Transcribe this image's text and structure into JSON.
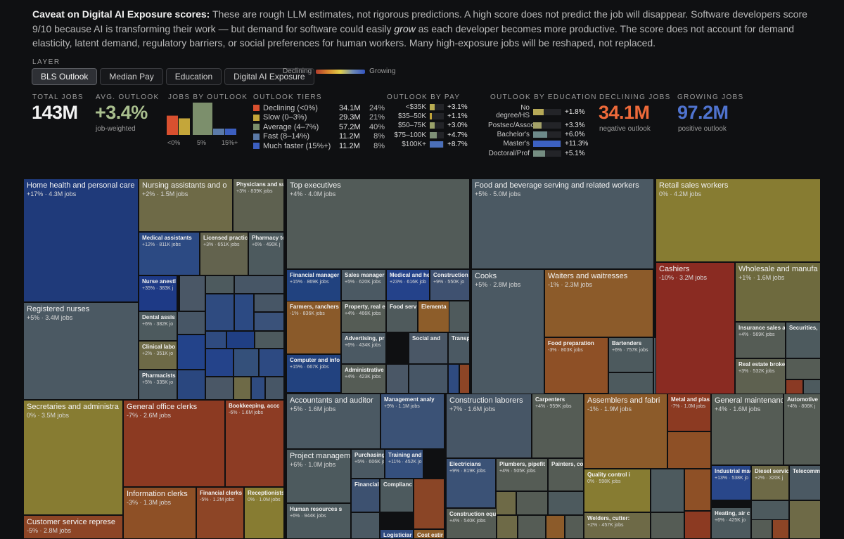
{
  "caveat": {
    "title": "Caveat on Digital AI Exposure scores:",
    "text_a": " These are rough LLM estimates, not rigorous predictions. A high score does not predict the job will disappear. Software developers score 9/10 because AI is transforming their work — but demand for software could easily ",
    "emphasis": "grow",
    "text_b": " as each developer becomes more productive. The score does not account for demand elasticity, latent demand, regulatory barriers, or social preferences for human workers. Many high-exposure jobs will be reshaped, not replaced."
  },
  "layer": {
    "label": "LAYER",
    "tabs": [
      "BLS Outlook",
      "Median Pay",
      "Education",
      "Digital AI Exposure"
    ],
    "legend_low": "Declining",
    "legend_high": "Growing"
  },
  "stats": {
    "total_jobs": {
      "title": "TOTAL JOBS",
      "value": "143M"
    },
    "avg_outlook": {
      "title": "AVG. OUTLOOK",
      "value": "+3.4%",
      "sub": "job-weighted"
    },
    "jobs_by_outlook": {
      "title": "JOBS BY OUTLOOK",
      "ticks": [
        "<0%",
        "5%",
        "15%+"
      ],
      "values": [
        34.1,
        29.3,
        57.2,
        11.2,
        11.2
      ]
    },
    "outlook_tiers": {
      "title": "OUTLOOK TIERS",
      "rows": [
        {
          "label": "Declining (<0%)",
          "value": "34.1M",
          "pct": "24%",
          "color": "#d9502f"
        },
        {
          "label": "Slow (0–3%)",
          "value": "29.3M",
          "pct": "21%",
          "color": "#c4a63a"
        },
        {
          "label": "Average (4–7%)",
          "value": "57.2M",
          "pct": "40%",
          "color": "#7c8f6c"
        },
        {
          "label": "Fast (8–14%)",
          "value": "11.2M",
          "pct": "8%",
          "color": "#5b7aa8"
        },
        {
          "label": "Much faster (15%+)",
          "value": "11.2M",
          "pct": "8%",
          "color": "#3c5fc0"
        }
      ]
    },
    "outlook_by_pay": {
      "title": "OUTLOOK BY PAY",
      "rows": [
        {
          "label": "<$35K",
          "value": "+3.1%",
          "fill": 0.36,
          "color": "#b8ac52"
        },
        {
          "label": "$35–50K",
          "value": "+1.1%",
          "fill": 0.15,
          "color": "#c2a53a"
        },
        {
          "label": "$50–75K",
          "value": "+3.0%",
          "fill": 0.35,
          "color": "#9aa26a"
        },
        {
          "label": "$75–100K",
          "value": "+4.7%",
          "fill": 0.5,
          "color": "#7f9077"
        },
        {
          "label": "$100K+",
          "value": "+8.7%",
          "fill": 0.93,
          "color": "#4b6fb8"
        }
      ]
    },
    "outlook_by_education": {
      "title": "OUTLOOK BY EDUCATION",
      "rows": [
        {
          "label": "No degree/HS",
          "value": "+1.8%",
          "fill": 0.37,
          "color": "#b6a957"
        },
        {
          "label": "Postsec/Assoc",
          "value": "+3.3%",
          "fill": 0.3,
          "color": "#a3a168"
        },
        {
          "label": "Bachelor's",
          "value": "+6.0%",
          "fill": 0.5,
          "color": "#6d8a8a"
        },
        {
          "label": "Master's",
          "value": "+11.3%",
          "fill": 0.97,
          "color": "#3c61c2"
        },
        {
          "label": "Doctoral/Prof",
          "value": "+5.1%",
          "fill": 0.42,
          "color": "#758d82"
        }
      ]
    },
    "declining_jobs": {
      "title": "DECLINING JOBS",
      "value": "34.1M",
      "sub": "negative outlook"
    },
    "growing_jobs": {
      "title": "GROWING JOBS",
      "value": "97.2M",
      "sub": "positive outlook"
    }
  },
  "treemap": {
    "cells": [
      {
        "name": "Home health and personal care",
        "meta": "+17% · 4.3M jobs",
        "color": "#1f3a7a"
      },
      {
        "name": "Registered nurses",
        "meta": "+5% · 3.4M jobs",
        "color": "#4b5963"
      },
      {
        "name": "Nursing assistants and o",
        "meta": "+2% · 1.5M jobs",
        "color": "#6e6a47"
      },
      {
        "name": "Physicians and su",
        "meta": "+3% · 839K jobs",
        "color": "#5e6150"
      },
      {
        "name": "Medical assistants",
        "meta": "+12% · 811K jobs",
        "color": "#2c4a83"
      },
      {
        "name": "Licensed practic",
        "meta": "+3% · 651K jobs",
        "color": "#63634e"
      },
      {
        "name": "Pharmacy te",
        "meta": "+6% · 490K j",
        "color": "#4d5a5e"
      },
      {
        "name": "Nurse anestl",
        "meta": "+35% · 383K j",
        "color": "#1e3a86"
      },
      {
        "name": "Dental assis",
        "meta": "+6% · 382K jo",
        "color": "#4d5a5e"
      },
      {
        "name": "Clinical labo",
        "meta": "+2% · 351K jo",
        "color": "#6e6a47"
      },
      {
        "name": "Pharmacists",
        "meta": "+5% · 335K jo",
        "color": "#4b5963"
      },
      {
        "name": "Top executives",
        "meta": "+4% · 4.0M jobs",
        "color": "#525b58"
      },
      {
        "name": "Financial manager",
        "meta": "+15% · 869K jobs",
        "color": "#21427f"
      },
      {
        "name": "Sales manager",
        "meta": "+5% · 620K jobs",
        "color": "#4b5963"
      },
      {
        "name": "Medical and he",
        "meta": "+23% · 616K job",
        "color": "#24428a"
      },
      {
        "name": "Construction",
        "meta": "+9% · 550K jo",
        "color": "#3f5170"
      },
      {
        "name": "Farmers, ranchers",
        "meta": "-1% · 836K jobs",
        "color": "#8a5a2a"
      },
      {
        "name": "Property, real e",
        "meta": "+4% · 466K jobs",
        "color": "#555c55"
      },
      {
        "name": "Food serv",
        "meta": "",
        "color": "#4f5a5c"
      },
      {
        "name": "Elementa",
        "meta": "",
        "color": "#8d5d2a"
      },
      {
        "name": "Advertising, pr",
        "meta": "+6% · 434K jobs",
        "color": "#4b5963"
      },
      {
        "name": "Social and",
        "meta": "",
        "color": "#4a5766"
      },
      {
        "name": "Transport",
        "meta": "",
        "color": "#4b5963"
      },
      {
        "name": "Computer and info",
        "meta": "+15% · 667K jobs",
        "color": "#22427f"
      },
      {
        "name": "Administrative",
        "meta": "+4% · 423K jobs",
        "color": "#555c55"
      },
      {
        "name": "Food and beverage serving and related workers",
        "meta": "+5% · 5.0M jobs",
        "color": "#4b5963"
      },
      {
        "name": "Cooks",
        "meta": "+5% · 2.8M jobs",
        "color": "#4b5963"
      },
      {
        "name": "Waiters and waitresses",
        "meta": "-1% · 2.3M jobs",
        "color": "#8c5b2a"
      },
      {
        "name": "Food preparation",
        "meta": "-3% · 803K jobs",
        "color": "#8e5026"
      },
      {
        "name": "Bartenders",
        "meta": "+6% · 757K jobs",
        "color": "#4d5a5e"
      },
      {
        "name": "Retail sales workers",
        "meta": "0% · 4.2M jobs",
        "color": "#877c32"
      },
      {
        "name": "Cashiers",
        "meta": "-10% · 3.2M jobs",
        "color": "#8a2b22"
      },
      {
        "name": "Wholesale and manufa",
        "meta": "+1% · 1.6M jobs",
        "color": "#6e6a3e"
      },
      {
        "name": "Insurance sales a",
        "meta": "+4% · 569K jobs",
        "color": "#555c55"
      },
      {
        "name": "Securities,",
        "meta": "",
        "color": "#4d5a5e"
      },
      {
        "name": "Real estate broke",
        "meta": "+3% · 532K jobs",
        "color": "#5e6150"
      },
      {
        "name": "Secretaries and administra",
        "meta": "0% · 3.5M jobs",
        "color": "#877c32"
      },
      {
        "name": "General office clerks",
        "meta": "-7% · 2.6M jobs",
        "color": "#8c3a22"
      },
      {
        "name": "Bookkeeping, accc",
        "meta": "-6% · 1.6M jobs",
        "color": "#8d3c24"
      },
      {
        "name": "Information clerks",
        "meta": "-3% · 1.3M jobs",
        "color": "#8e5026"
      },
      {
        "name": "Financial clerks",
        "meta": "-5% · 1.2M jobs",
        "color": "#8d4526"
      },
      {
        "name": "Receptionists",
        "meta": "0% · 1.0M jobs",
        "color": "#877c32"
      },
      {
        "name": "Customer service represe",
        "meta": "-5% · 2.8M jobs",
        "color": "#8d4526"
      },
      {
        "name": "Accountants and auditor",
        "meta": "+5% · 1.6M jobs",
        "color": "#4b5963"
      },
      {
        "name": "Management analy",
        "meta": "+9% · 1.1M jobs",
        "color": "#3b5276"
      },
      {
        "name": "Project manageme",
        "meta": "+6% · 1.0M jobs",
        "color": "#4d5a5e"
      },
      {
        "name": "Purchasing manag",
        "meta": "+5% · 606K jobs",
        "color": "#4b5963"
      },
      {
        "name": "Training and",
        "meta": "+11% · 452K jo",
        "color": "#35507e"
      },
      {
        "name": "Financial a",
        "meta": "",
        "color": "#3d5170"
      },
      {
        "name": "Complianc",
        "meta": "",
        "color": "#4d5a5e"
      },
      {
        "name": "Human resources s",
        "meta": "+6% · 944K jobs",
        "color": "#4d5a5e"
      },
      {
        "name": "Logisticiar",
        "meta": "",
        "color": "#2f4b80"
      },
      {
        "name": "Cost estir",
        "meta": "",
        "color": "#8d5d2a"
      },
      {
        "name": "Construction laborers",
        "meta": "+7% · 1.6M jobs",
        "color": "#475666"
      },
      {
        "name": "Carpenters",
        "meta": "+4% · 959K jobs",
        "color": "#555c55"
      },
      {
        "name": "Electricians",
        "meta": "+9% · 819K jobs",
        "color": "#3b5276"
      },
      {
        "name": "Plumbers, pipefit",
        "meta": "+4% · 505K jobs",
        "color": "#555c55"
      },
      {
        "name": "Painters, co",
        "meta": "",
        "color": "#555c55"
      },
      {
        "name": "Construction equ",
        "meta": "+4% · 540K jobs",
        "color": "#555c55"
      },
      {
        "name": "Assemblers and fabri",
        "meta": "-1% · 1.9M jobs",
        "color": "#8c5b2a"
      },
      {
        "name": "Metal and plas",
        "meta": "-7% · 1.0M jobs",
        "color": "#8c3a22"
      },
      {
        "name": "Quality control i",
        "meta": "0% · 598K jobs",
        "color": "#877c32"
      },
      {
        "name": "Welders, cutter:",
        "meta": "+2% · 457K jobs",
        "color": "#6e6a47"
      },
      {
        "name": "General maintenanc",
        "meta": "+4% · 1.6M jobs",
        "color": "#555c55"
      },
      {
        "name": "Automotive",
        "meta": "+4% · 806K j",
        "color": "#555c55"
      },
      {
        "name": "Industrial mac",
        "meta": "+13% · 538K jo",
        "color": "#29478a"
      },
      {
        "name": "Diesel servic",
        "meta": "+2% · 320K j",
        "color": "#6e6a47"
      },
      {
        "name": "Telecomm",
        "meta": "",
        "color": "#4b5963"
      },
      {
        "name": "Heating, air c",
        "meta": "+6% · 425K jo",
        "color": "#4d5a5e"
      }
    ]
  }
}
